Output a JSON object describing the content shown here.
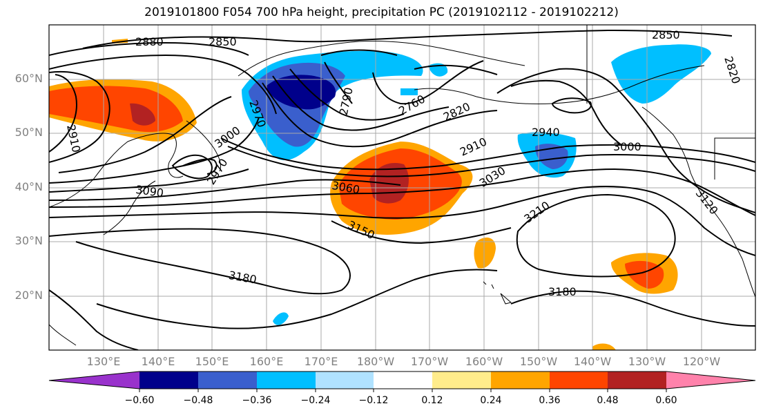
{
  "title": "2019101800 F054 700 hPa height, precipitation PC (2019102112 - 2019102212)",
  "map": {
    "projection": "PlateCarree",
    "lon_range": [
      120,
      250
    ],
    "lat_range": [
      10,
      70
    ],
    "lat_labels": [
      "20°N",
      "30°N",
      "40°N",
      "50°N",
      "60°N"
    ],
    "lon_labels": [
      "130°E",
      "140°E",
      "150°E",
      "160°E",
      "170°E",
      "180°W",
      "170°W",
      "160°W",
      "150°W",
      "140°W",
      "130°W",
      "120°W"
    ],
    "gridlines": true,
    "contour_labels": [
      "2880",
      "2850",
      "2850",
      "2820",
      "2910",
      "2970",
      "3000",
      "2970",
      "3090",
      "2790",
      "2760",
      "2820",
      "2910",
      "2940",
      "3000",
      "3060",
      "3030",
      "3150",
      "3210",
      "3180",
      "3180",
      "3120"
    ]
  },
  "colorbar": {
    "ticks": [
      "−0.60",
      "−0.48",
      "−0.36",
      "−0.24",
      "−0.12",
      "0.12",
      "0.24",
      "0.36",
      "0.48",
      "0.60"
    ],
    "colors": [
      "#9932cc",
      "#00008b",
      "#3a5fcd",
      "#00bfff",
      "#b0e2ff",
      "#ffffff",
      "#ffec8b",
      "#ffa500",
      "#ff4500",
      "#b22222",
      "#ff82ab"
    ],
    "extend": "both"
  }
}
